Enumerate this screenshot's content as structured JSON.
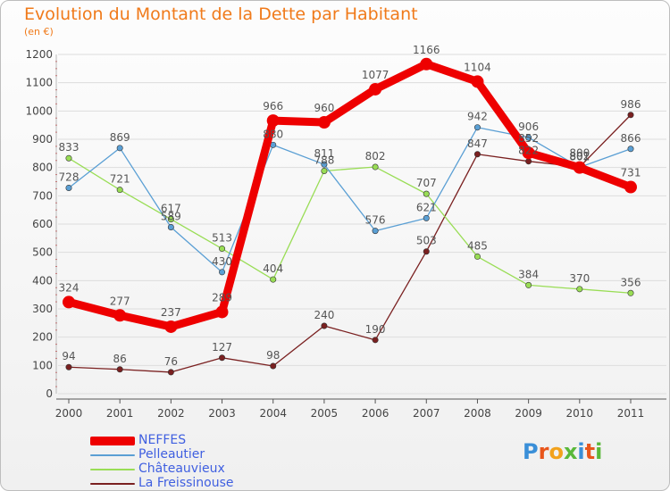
{
  "title": "Evolution du Montant de la Dette par Habitant",
  "subtitle": "(en €)",
  "colors": {
    "title": "#f07a1a",
    "axis": "#444444",
    "grid": "#dddddd",
    "label": "#555555",
    "legend_text": "#3f5fe0"
  },
  "logo": {
    "text": "Proxiti",
    "letter_colors": [
      "#3a8fd8",
      "#e8561c",
      "#f2a21c",
      "#5ab83a",
      "#3a8fd8",
      "#e8561c",
      "#5ab83a"
    ]
  },
  "chart_data": {
    "type": "line",
    "title": "Evolution du Montant de la Dette par Habitant",
    "subtitle": "(en €)",
    "xlabel": "",
    "ylabel": "",
    "x": [
      "2000",
      "2001",
      "2002",
      "2003",
      "2004",
      "2005",
      "2006",
      "2007",
      "2008",
      "2009",
      "2010",
      "2011"
    ],
    "ylim": [
      0,
      1200
    ],
    "yticks": [
      0,
      100,
      200,
      300,
      400,
      500,
      600,
      700,
      800,
      900,
      1000,
      1100,
      1200
    ],
    "grid": "horizontal",
    "legend_position": "bottom-left",
    "series": [
      {
        "name": "NEFFES",
        "color": "#ee0000",
        "values": [
          324,
          277,
          237,
          289,
          966,
          960,
          1077,
          1166,
          1104,
          852,
          800,
          731
        ]
      },
      {
        "name": "Pelleautier",
        "color": "#5a9fd4",
        "values": [
          728,
          869,
          589,
          430,
          880,
          811,
          576,
          621,
          942,
          906,
          801,
          866
        ]
      },
      {
        "name": "Châteauvieux",
        "color": "#99dd55",
        "values": [
          833,
          721,
          617,
          513,
          404,
          788,
          802,
          707,
          485,
          384,
          370,
          356
        ]
      },
      {
        "name": "La Freissinouse",
        "color": "#7a2020",
        "values": [
          94,
          86,
          76,
          127,
          98,
          240,
          190,
          503,
          847,
          822,
          802,
          986
        ]
      }
    ]
  }
}
